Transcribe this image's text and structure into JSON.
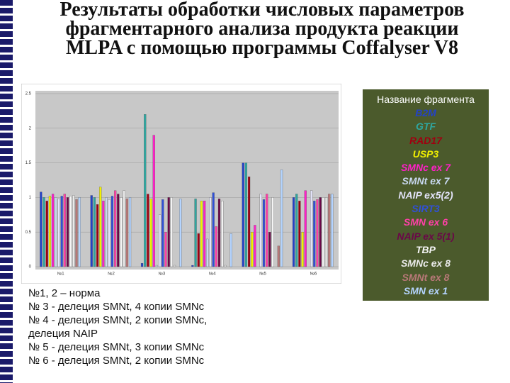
{
  "chart_data": {
    "type": "bar",
    "title": "Результаты обработки числовых параметров фрагментарного анализа продукта реакции MLPA с помощью программы Coffalyser V8",
    "legend_title": "Название фрагмента",
    "categories": [
      "№1",
      "№2",
      "№3",
      "№4",
      "№5",
      "№6"
    ],
    "ylim": [
      0,
      2.5
    ],
    "yticks": [
      0,
      0.5,
      1,
      1.5,
      2,
      2.5
    ],
    "grid": true,
    "series": [
      {
        "name": "B2M",
        "color": "#2342c8",
        "values": [
          1.08,
          1.03,
          0.05,
          0.02,
          1.5,
          1.0
        ]
      },
      {
        "name": "GTF",
        "color": "#2fa6a0",
        "values": [
          1.0,
          1.0,
          2.2,
          0.98,
          1.5,
          1.05
        ]
      },
      {
        "name": "RAD17",
        "color": "#a00010",
        "values": [
          0.95,
          0.9,
          1.05,
          0.48,
          1.3,
          0.95
        ]
      },
      {
        "name": "USP3",
        "color": "#f2f000",
        "values": [
          1.02,
          1.15,
          0.98,
          0.95,
          0.5,
          0.5
        ]
      },
      {
        "name": "SMNc ex 7",
        "color": "#ff20c8",
        "values": [
          1.05,
          0.95,
          1.9,
          0.95,
          0.6,
          1.1
        ]
      },
      {
        "name": "SMNt ex 7",
        "color": "#c8d8f0",
        "values": [
          1.0,
          1.0,
          0.02,
          0.4,
          0.0,
          0.0
        ]
      },
      {
        "name": "NAIP ex5(2)",
        "color": "#e4e4fa",
        "values": [
          0.98,
          0.97,
          0.75,
          1.0,
          1.05,
          1.1
        ]
      },
      {
        "name": "SIRT3",
        "color": "#3050d8",
        "values": [
          1.02,
          1.02,
          0.97,
          1.07,
          0.97,
          0.95
        ]
      },
      {
        "name": "SMN ex 6",
        "color": "#ff40a8",
        "values": [
          1.05,
          1.1,
          0.5,
          0.58,
          1.05,
          0.97
        ]
      },
      {
        "name": "NAIP ex 5(1)",
        "color": "#6a0848",
        "values": [
          1.0,
          1.05,
          1.0,
          0.98,
          0.5,
          1.0
        ]
      },
      {
        "name": "TBP",
        "color": "#f4f4f4",
        "values": [
          1.02,
          1.0,
          1.0,
          0.95,
          1.0,
          1.0
        ]
      },
      {
        "name": "SMNc ex 8",
        "color": "#eaeaea",
        "values": [
          1.03,
          1.1,
          0.02,
          0.02,
          0.0,
          1.0
        ]
      },
      {
        "name": "SMNt ex 8",
        "color": "#b87878",
        "values": [
          0.97,
          0.98,
          0.0,
          0.0,
          0.3,
          1.05
        ]
      },
      {
        "name": "SMN ex 1",
        "color": "#b4d4ff",
        "values": [
          1.0,
          1.0,
          0.98,
          0.48,
          1.4,
          1.05
        ]
      }
    ]
  },
  "notes": [
    "№1, 2 – норма",
    "№ 3 - делеция SMNt, 4 копии SMNc",
    "№ 4 - делеция SMNt, 2 копии SMNc,",
    "делеция NAIP",
    "№ 5 - делеция SMNt, 3 копии SMNc",
    "№ 6 - делеция SMNt, 2 копии SMNc"
  ]
}
